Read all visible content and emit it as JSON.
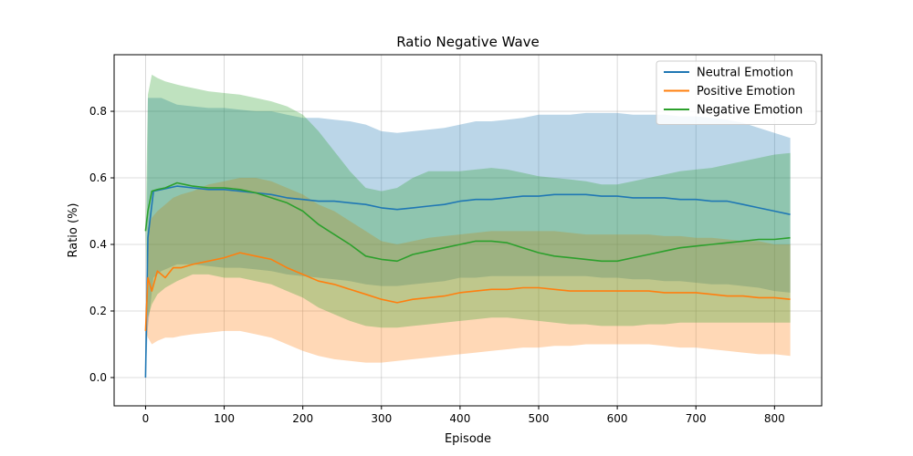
{
  "chart_data": {
    "type": "line",
    "title": "Ratio Negative Wave",
    "xlabel": "Episode",
    "ylabel": "Ratio (%)",
    "xlim": [
      -40,
      860
    ],
    "ylim": [
      -0.085,
      0.97
    ],
    "xticks": [
      0,
      100,
      200,
      300,
      400,
      500,
      600,
      700,
      800
    ],
    "yticks": [
      0.0,
      0.2,
      0.4,
      0.6,
      0.8
    ],
    "grid": true,
    "legend_position": "top-right",
    "band": "shaded band around each series (spread)",
    "series": [
      {
        "name": "Neutral Emotion",
        "color": "#1f77b4",
        "x": [
          0,
          3,
          10,
          20,
          40,
          60,
          80,
          100,
          120,
          140,
          160,
          180,
          200,
          220,
          240,
          260,
          280,
          300,
          320,
          340,
          360,
          380,
          400,
          420,
          440,
          460,
          480,
          500,
          520,
          540,
          560,
          580,
          600,
          620,
          640,
          660,
          680,
          700,
          720,
          740,
          760,
          780,
          800,
          820
        ],
        "y": [
          0.0,
          0.42,
          0.56,
          0.565,
          0.575,
          0.57,
          0.565,
          0.565,
          0.56,
          0.555,
          0.55,
          0.54,
          0.535,
          0.53,
          0.53,
          0.525,
          0.52,
          0.51,
          0.505,
          0.51,
          0.515,
          0.52,
          0.53,
          0.535,
          0.535,
          0.54,
          0.545,
          0.545,
          0.55,
          0.55,
          0.55,
          0.545,
          0.545,
          0.54,
          0.54,
          0.54,
          0.535,
          0.535,
          0.53,
          0.53,
          0.52,
          0.51,
          0.5,
          0.49
        ],
        "upper": [
          0.0,
          0.84,
          0.84,
          0.84,
          0.82,
          0.815,
          0.81,
          0.81,
          0.805,
          0.8,
          0.8,
          0.79,
          0.78,
          0.78,
          0.775,
          0.77,
          0.76,
          0.74,
          0.735,
          0.74,
          0.745,
          0.75,
          0.76,
          0.77,
          0.77,
          0.775,
          0.78,
          0.79,
          0.79,
          0.79,
          0.795,
          0.795,
          0.795,
          0.79,
          0.79,
          0.79,
          0.785,
          0.785,
          0.78,
          0.775,
          0.765,
          0.75,
          0.735,
          0.72
        ],
        "lower": [
          0.0,
          0.15,
          0.3,
          0.32,
          0.34,
          0.34,
          0.335,
          0.33,
          0.33,
          0.325,
          0.32,
          0.31,
          0.305,
          0.3,
          0.295,
          0.29,
          0.28,
          0.275,
          0.275,
          0.28,
          0.285,
          0.29,
          0.3,
          0.3,
          0.305,
          0.305,
          0.305,
          0.305,
          0.305,
          0.305,
          0.305,
          0.3,
          0.3,
          0.295,
          0.295,
          0.29,
          0.29,
          0.285,
          0.28,
          0.28,
          0.275,
          0.27,
          0.26,
          0.255
        ]
      },
      {
        "name": "Positive Emotion",
        "color": "#ff7f0e",
        "x": [
          0,
          3,
          8,
          15,
          25,
          35,
          45,
          60,
          80,
          100,
          120,
          140,
          160,
          180,
          200,
          220,
          240,
          260,
          280,
          300,
          320,
          340,
          360,
          380,
          400,
          420,
          440,
          460,
          480,
          500,
          520,
          540,
          560,
          580,
          600,
          620,
          640,
          660,
          680,
          700,
          720,
          740,
          760,
          780,
          800,
          820
        ],
        "y": [
          0.14,
          0.3,
          0.26,
          0.32,
          0.3,
          0.33,
          0.33,
          0.34,
          0.35,
          0.36,
          0.375,
          0.365,
          0.355,
          0.33,
          0.31,
          0.29,
          0.28,
          0.265,
          0.25,
          0.235,
          0.225,
          0.235,
          0.24,
          0.245,
          0.255,
          0.26,
          0.265,
          0.265,
          0.27,
          0.27,
          0.265,
          0.26,
          0.26,
          0.26,
          0.26,
          0.26,
          0.26,
          0.255,
          0.255,
          0.255,
          0.25,
          0.245,
          0.245,
          0.24,
          0.24,
          0.235
        ],
        "upper": [
          0.14,
          0.45,
          0.48,
          0.5,
          0.52,
          0.54,
          0.55,
          0.56,
          0.58,
          0.59,
          0.6,
          0.6,
          0.59,
          0.57,
          0.55,
          0.52,
          0.5,
          0.47,
          0.44,
          0.41,
          0.4,
          0.41,
          0.42,
          0.425,
          0.43,
          0.435,
          0.44,
          0.44,
          0.44,
          0.44,
          0.44,
          0.435,
          0.43,
          0.43,
          0.43,
          0.43,
          0.43,
          0.425,
          0.425,
          0.42,
          0.42,
          0.415,
          0.41,
          0.41,
          0.4,
          0.4
        ],
        "lower": [
          0.14,
          0.12,
          0.1,
          0.11,
          0.12,
          0.12,
          0.125,
          0.13,
          0.135,
          0.14,
          0.14,
          0.13,
          0.12,
          0.1,
          0.08,
          0.065,
          0.055,
          0.05,
          0.045,
          0.045,
          0.05,
          0.055,
          0.06,
          0.065,
          0.07,
          0.075,
          0.08,
          0.085,
          0.09,
          0.09,
          0.095,
          0.095,
          0.1,
          0.1,
          0.1,
          0.1,
          0.1,
          0.095,
          0.09,
          0.09,
          0.085,
          0.08,
          0.075,
          0.07,
          0.07,
          0.065
        ]
      },
      {
        "name": "Negative Emotion",
        "color": "#2ca02c",
        "x": [
          0,
          3,
          8,
          15,
          25,
          40,
          50,
          60,
          80,
          100,
          120,
          140,
          160,
          180,
          200,
          220,
          240,
          260,
          280,
          300,
          320,
          340,
          360,
          380,
          400,
          420,
          440,
          460,
          480,
          500,
          520,
          540,
          560,
          580,
          600,
          620,
          640,
          660,
          680,
          700,
          720,
          740,
          760,
          780,
          800,
          820
        ],
        "y": [
          0.44,
          0.5,
          0.56,
          0.565,
          0.57,
          0.585,
          0.58,
          0.575,
          0.57,
          0.57,
          0.565,
          0.555,
          0.54,
          0.525,
          0.5,
          0.46,
          0.43,
          0.4,
          0.365,
          0.355,
          0.35,
          0.37,
          0.38,
          0.39,
          0.4,
          0.41,
          0.41,
          0.405,
          0.39,
          0.375,
          0.365,
          0.36,
          0.355,
          0.35,
          0.35,
          0.36,
          0.37,
          0.38,
          0.39,
          0.395,
          0.4,
          0.405,
          0.41,
          0.415,
          0.415,
          0.42
        ],
        "upper": [
          0.44,
          0.85,
          0.91,
          0.9,
          0.89,
          0.88,
          0.875,
          0.87,
          0.86,
          0.855,
          0.85,
          0.84,
          0.83,
          0.815,
          0.79,
          0.74,
          0.68,
          0.62,
          0.57,
          0.56,
          0.57,
          0.6,
          0.62,
          0.62,
          0.62,
          0.625,
          0.63,
          0.625,
          0.615,
          0.605,
          0.6,
          0.595,
          0.59,
          0.58,
          0.58,
          0.59,
          0.6,
          0.61,
          0.62,
          0.625,
          0.63,
          0.64,
          0.65,
          0.66,
          0.67,
          0.675
        ],
        "lower": [
          0.44,
          0.18,
          0.22,
          0.25,
          0.27,
          0.29,
          0.3,
          0.31,
          0.31,
          0.3,
          0.3,
          0.29,
          0.28,
          0.26,
          0.24,
          0.21,
          0.19,
          0.17,
          0.155,
          0.15,
          0.15,
          0.155,
          0.16,
          0.165,
          0.17,
          0.175,
          0.18,
          0.18,
          0.175,
          0.17,
          0.165,
          0.16,
          0.16,
          0.155,
          0.155,
          0.155,
          0.16,
          0.16,
          0.165,
          0.165,
          0.165,
          0.165,
          0.165,
          0.165,
          0.165,
          0.165
        ]
      }
    ]
  }
}
